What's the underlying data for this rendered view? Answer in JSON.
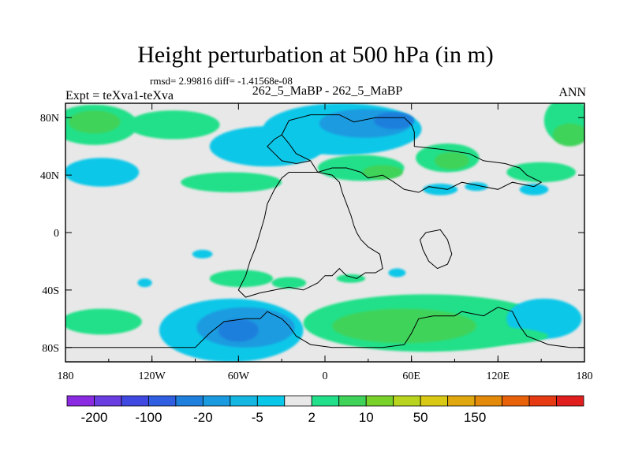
{
  "chart_data": {
    "type": "heatmap",
    "title": "Height perturbation at 500 hPa (in m)",
    "subtitle": "rmsd= 2.99816 diff= -1.41568e-08",
    "left_label": "Expt = teXva1-teXva",
    "center_label": "262_5_MaBP - 262_5_MaBP",
    "right_label": "ANN",
    "x_ticks": [
      {
        "value": -180,
        "label": "180"
      },
      {
        "value": -120,
        "label": "120W"
      },
      {
        "value": -60,
        "label": "60W"
      },
      {
        "value": 0,
        "label": "0"
      },
      {
        "value": 60,
        "label": "60E"
      },
      {
        "value": 120,
        "label": "120E"
      },
      {
        "value": 180,
        "label": "180"
      }
    ],
    "y_ticks": [
      {
        "value": 80,
        "label": "80N"
      },
      {
        "value": 40,
        "label": "40N"
      },
      {
        "value": 0,
        "label": "0"
      },
      {
        "value": -40,
        "label": "40S"
      },
      {
        "value": -80,
        "label": "80S"
      }
    ],
    "xlim": [
      -180,
      180
    ],
    "ylim": [
      -90,
      90
    ],
    "colorbar": {
      "colors": [
        "#8a2be2",
        "#6a3de0",
        "#3f48e0",
        "#2f5fe0",
        "#1e7fdc",
        "#1a9be0",
        "#14b7e2",
        "#08c7e8",
        "#e8e8e8",
        "#22e089",
        "#3fd35a",
        "#78d22a",
        "#b8d41e",
        "#d9c914",
        "#e0a80e",
        "#e48a0a",
        "#e8620a",
        "#e63a12",
        "#e01e1e"
      ],
      "labels": [
        {
          "boundary": 1,
          "text": "-200"
        },
        {
          "boundary": 3,
          "text": "-100"
        },
        {
          "boundary": 5,
          "text": "-20"
        },
        {
          "boundary": 7,
          "text": "-5"
        },
        {
          "boundary": 9,
          "text": "2"
        },
        {
          "boundary": 11,
          "text": "10"
        },
        {
          "boundary": 13,
          "text": "50"
        },
        {
          "boundary": 15,
          "text": "150"
        }
      ]
    },
    "fields": [
      {
        "lon": -160,
        "lat": 75,
        "rx": 30,
        "ry": 14,
        "level": 1
      },
      {
        "lon": -160,
        "lat": 77,
        "rx": 18,
        "ry": 8,
        "level": 2
      },
      {
        "lon": -105,
        "lat": 75,
        "rx": 32,
        "ry": 10,
        "level": 1
      },
      {
        "lon": -155,
        "lat": 42,
        "rx": 26,
        "ry": 10,
        "level": -1
      },
      {
        "lon": -40,
        "lat": 60,
        "rx": 40,
        "ry": 14,
        "level": -1
      },
      {
        "lon": 12,
        "lat": 72,
        "rx": 55,
        "ry": 18,
        "level": -1
      },
      {
        "lon": 28,
        "lat": 76,
        "rx": 32,
        "ry": 10,
        "level": -2
      },
      {
        "lon": 48,
        "lat": 78,
        "rx": 14,
        "ry": 6,
        "level": -3
      },
      {
        "lon": 168,
        "lat": 78,
        "rx": 16,
        "ry": 16,
        "level": 1
      },
      {
        "lon": 170,
        "lat": 68,
        "rx": 12,
        "ry": 8,
        "level": 2
      },
      {
        "lon": 85,
        "lat": 52,
        "rx": 22,
        "ry": 10,
        "level": 1
      },
      {
        "lon": 88,
        "lat": 50,
        "rx": 12,
        "ry": 6,
        "level": 2
      },
      {
        "lon": 25,
        "lat": 45,
        "rx": 30,
        "ry": 9,
        "level": 1
      },
      {
        "lon": 40,
        "lat": 42,
        "rx": 14,
        "ry": 5,
        "level": 2
      },
      {
        "lon": -65,
        "lat": 35,
        "rx": 35,
        "ry": 7,
        "level": 1
      },
      {
        "lon": 150,
        "lat": 42,
        "rx": 24,
        "ry": 7,
        "level": 1
      },
      {
        "lon": 145,
        "lat": 30,
        "rx": 10,
        "ry": 4,
        "level": -1
      },
      {
        "lon": 80,
        "lat": 30,
        "rx": 12,
        "ry": 4,
        "level": -1
      },
      {
        "lon": 105,
        "lat": 32,
        "rx": 8,
        "ry": 3,
        "level": -1
      },
      {
        "lon": -85,
        "lat": -15,
        "rx": 7,
        "ry": 3,
        "level": -1
      },
      {
        "lon": -125,
        "lat": -35,
        "rx": 5,
        "ry": 3,
        "level": -1
      },
      {
        "lon": -58,
        "lat": -32,
        "rx": 22,
        "ry": 6,
        "level": 1
      },
      {
        "lon": -25,
        "lat": -35,
        "rx": 12,
        "ry": 4,
        "level": 1
      },
      {
        "lon": 18,
        "lat": -32,
        "rx": 10,
        "ry": 3,
        "level": 1
      },
      {
        "lon": 50,
        "lat": -28,
        "rx": 6,
        "ry": 3,
        "level": -1
      },
      {
        "lon": -155,
        "lat": -62,
        "rx": 28,
        "ry": 9,
        "level": 1
      },
      {
        "lon": -65,
        "lat": -68,
        "rx": 50,
        "ry": 22,
        "level": -1
      },
      {
        "lon": -55,
        "lat": -66,
        "rx": 34,
        "ry": 14,
        "level": -2
      },
      {
        "lon": -60,
        "lat": -68,
        "rx": 14,
        "ry": 8,
        "level": -3
      },
      {
        "lon": 70,
        "lat": -63,
        "rx": 85,
        "ry": 20,
        "level": 1
      },
      {
        "lon": 55,
        "lat": -65,
        "rx": 50,
        "ry": 12,
        "level": 2
      },
      {
        "lon": 152,
        "lat": -60,
        "rx": 26,
        "ry": 14,
        "level": -1
      },
      {
        "lon": 95,
        "lat": -72,
        "rx": 60,
        "ry": 7,
        "level": 1
      }
    ],
    "field_colors": {
      "-3": "#1e7fdc",
      "-2": "#1a9be0",
      "-1": "#08c7e8",
      "1": "#22e089",
      "2": "#3fd35a"
    },
    "background_color": "#e8e8e8"
  }
}
